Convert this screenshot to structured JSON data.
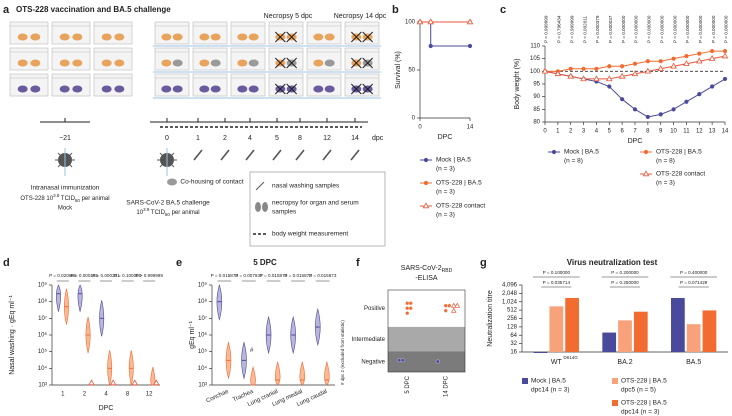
{
  "panel_labels": [
    "a",
    "b",
    "c",
    "d",
    "e",
    "f",
    "g"
  ],
  "diagram": {
    "title": "OTS-228 vaccination and BA.5 challenge",
    "necropsy_labels": [
      "Necropsy 5 dpc",
      "Necropsy 14 dpc"
    ],
    "timeline": [
      "−21",
      "0",
      "1",
      "2",
      "4",
      "5",
      "8",
      "12",
      "14"
    ],
    "timeline_unit": "dpc",
    "immunization": {
      "title": "Intranasal immunization",
      "dose": [
        "OTS-228 10",
        "3.8",
        " TCID",
        "50",
        " per animal"
      ],
      "mock": "Mock"
    },
    "challenge": {
      "title": "SARS-CoV-2 BA.5 challenge",
      "dose": [
        "10",
        "3.9",
        " TCID",
        "50",
        " per animal"
      ]
    },
    "cohousing": "Co-housing of contact",
    "legend": [
      "nasal washing samples",
      "necropsy for organ and serum",
      "samples",
      "body weight measurement"
    ]
  },
  "chart_data": [
    {
      "type": "line",
      "step": true,
      "xlabel": "DPC",
      "ylabel": "Survival (%)",
      "x": [
        0,
        3,
        14
      ],
      "xlim": [
        0,
        14
      ],
      "xticks": [
        0,
        14
      ],
      "ylim": [
        0,
        100
      ],
      "yticks": [
        0,
        50,
        100
      ],
      "series": [
        {
          "name": "Mock | BA.5",
          "n": "(n = 3)",
          "color": "#4a4a9c",
          "marker": "circle",
          "values": [
            100,
            75,
            75
          ]
        },
        {
          "name": "OTS-228 | BA.5",
          "n": "(n = 3)",
          "color": "#f26b30",
          "marker": "circle",
          "values": [
            100,
            100,
            100
          ]
        },
        {
          "name": "OTS-228 contact",
          "n": "(n = 3)",
          "color": "#e8553a",
          "marker": "triangle",
          "values": [
            100,
            100,
            100
          ]
        }
      ]
    },
    {
      "type": "line",
      "xlabel": "DPC",
      "ylabel": "Body weight (%)",
      "x": [
        0,
        1,
        2,
        3,
        4,
        5,
        6,
        7,
        8,
        9,
        10,
        11,
        12,
        13,
        14
      ],
      "xlim": [
        0,
        14
      ],
      "xticks": [
        0,
        1,
        2,
        3,
        4,
        5,
        6,
        7,
        8,
        9,
        10,
        11,
        12,
        13,
        14
      ],
      "ylim": [
        80,
        110
      ],
      "yticks": [
        80,
        85,
        90,
        95,
        100,
        105,
        110
      ],
      "reference_line": 100,
      "p_values": [
        "P = 0.999999",
        "P = 0.796434",
        "P = 0.999999",
        "P = 0.002011",
        "P = 0.000379",
        "P = 0.000037",
        "P = 0.000000",
        "P = 0.000000",
        "P = 0.000000",
        "P = 0.000000",
        "P = 0.000000",
        "P = 0.000000",
        "P = 0.000000",
        "P = 0.000000",
        "P = 0.000000"
      ],
      "series": [
        {
          "name": "Mock | BA.5",
          "n": "(n = 8)",
          "color": "#4a4a9c",
          "marker": "circle",
          "values": [
            100,
            99,
            98,
            97,
            96,
            94,
            89,
            85,
            82,
            83,
            85,
            88,
            91,
            94,
            97
          ]
        },
        {
          "name": "OTS-228 | BA.5",
          "n": "(n = 8)",
          "color": "#f26b30",
          "marker": "circle",
          "values": [
            100,
            100,
            101,
            101,
            101,
            102,
            102,
            103,
            104,
            104,
            105,
            106,
            107,
            108,
            108
          ]
        },
        {
          "name": "OTS-228 contact",
          "n": "(n = 3)",
          "color": "#e8553a",
          "marker": "triangle",
          "values": [
            100,
            99,
            98,
            97,
            97,
            97,
            98,
            99,
            100,
            101,
            102,
            103,
            104,
            105,
            106
          ]
        }
      ]
    },
    {
      "type": "violin",
      "xlabel": "DPC",
      "ylabel": "Nasal washing · gEq ml⁻¹",
      "log_y": true,
      "categories": [
        "1",
        "2",
        "4",
        "8",
        "12"
      ],
      "ylim": [
        1000,
        1000000000
      ],
      "yticks": [
        {
          "value": 1000,
          "label": "10³"
        },
        {
          "value": 10000,
          "label": "10⁴"
        },
        {
          "value": 100000,
          "label": "10⁵"
        },
        {
          "value": 1000000,
          "label": "10⁶"
        },
        {
          "value": 10000000,
          "label": "10⁷"
        },
        {
          "value": 100000000,
          "label": "10⁸"
        },
        {
          "value": 1000000000,
          "label": "10⁹"
        }
      ],
      "p_values": [
        "P = 0.020668",
        "P = 0.000155",
        "P = 0.000331",
        "P = 0.100000",
        "P > 0.999999"
      ],
      "series": [
        {
          "color": "#4a4a9c",
          "fill": "#b9b6dc",
          "values": [
            300000000,
            300000000,
            10000000,
            null,
            null
          ]
        },
        {
          "color": "#f26b30",
          "fill": "#f8b996",
          "values": [
            50000000,
            1000000,
            10000,
            10000,
            1000
          ]
        },
        {
          "color": "#e8553a",
          "marker": "triangle",
          "values": [
            null,
            1000,
            1000,
            1000,
            1000
          ]
        }
      ]
    },
    {
      "type": "violin",
      "title": "5 DPC",
      "ylabel": "gEq ml⁻¹",
      "log_y": true,
      "categories": [
        "Conchae",
        "Trachea",
        "Lung cranial",
        "Lung medial",
        "Lung caudal"
      ],
      "ylim": [
        1000,
        1000000000
      ],
      "yticks": [
        {
          "value": 1000,
          "label": "10³"
        },
        {
          "value": 10000,
          "label": "10⁴"
        },
        {
          "value": 100000,
          "label": "10⁵"
        },
        {
          "value": 1000000,
          "label": "10⁶"
        },
        {
          "value": 10000000,
          "label": "10⁷"
        },
        {
          "value": 100000000,
          "label": "10⁸"
        },
        {
          "value": 1000000000,
          "label": "10⁹"
        }
      ],
      "p_values": [
        "P = 0.015873",
        "P = 0.007937",
        "P = 0.015873",
        "P = 0.015873",
        "P = 0.015873"
      ],
      "excluded_mark": "#",
      "note": "# dpc 2 (excluded from statistic)",
      "series": [
        {
          "color": "#4a4a9c",
          "fill": "#b9b6dc",
          "values": [
            100000000,
            30000,
            1000000,
            1000000,
            3000000
          ]
        },
        {
          "color": "#f26b30",
          "fill": "#f8b996",
          "values": [
            30000,
            1000,
            2000,
            2000,
            2000
          ]
        }
      ]
    },
    {
      "type": "dot",
      "title": [
        "SARS-CoV-2",
        "RBD",
        "-ELISA"
      ],
      "levels": [
        "Positive",
        "Intermediate",
        "Negative"
      ],
      "categories": [
        "5 DPC",
        "14 DPC"
      ],
      "series": [
        {
          "color": "#4a4a9c",
          "level": "Negative",
          "values": [
            2,
            1
          ]
        },
        {
          "color": "#f26b30",
          "level": "Positive",
          "values": [
            5,
            3
          ]
        },
        {
          "color": "#e8553a",
          "marker": "triangle",
          "level": "Positive",
          "values": [
            0,
            3
          ]
        }
      ]
    },
    {
      "type": "bar",
      "title": "Virus neutralization test",
      "ylabel": "Neutralization titre",
      "log_y": true,
      "categories": [
        "WT",
        "BA.2",
        "BA.5"
      ],
      "category_superscript": "D614G",
      "ylim": [
        16,
        4096
      ],
      "yticks": [
        16,
        32,
        64,
        128,
        256,
        512,
        {
          "value": 1024,
          "label": "1,024"
        },
        {
          "value": 2048,
          "label": "2,048"
        },
        {
          "value": 4096,
          "label": "4,096"
        }
      ],
      "p_values": [
        [
          "P = 0.100000",
          "P = 0.035714"
        ],
        [
          "P = 0.200000",
          "P = 0.250000"
        ],
        [
          "P = 0.400000",
          "P = 0.071429"
        ]
      ],
      "series": [
        {
          "name": "Mock | BA.5",
          "detail": "dpc14 (n = 3)",
          "color": "#4a4a9c",
          "values": [
            16,
            80,
            1400
          ]
        },
        {
          "name": "OTS-228 | BA.5",
          "detail": "dpc5 (n = 5)",
          "color": "#f7a27a",
          "values": [
            700,
            220,
            160
          ]
        },
        {
          "name": "OTS-228 | BA.5",
          "detail": "dpc14 (n = 3)",
          "color": "#f26b30",
          "values": [
            1400,
            450,
            500
          ]
        }
      ]
    }
  ]
}
